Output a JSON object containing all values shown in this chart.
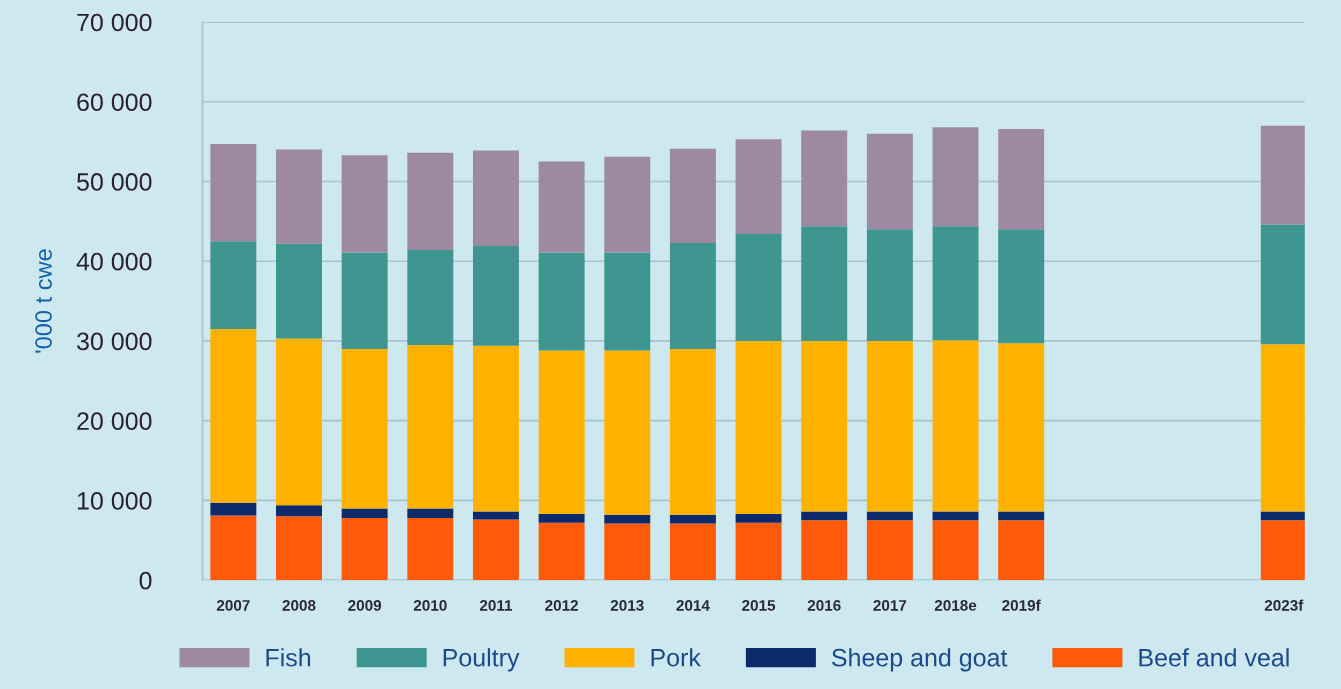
{
  "chart_data": {
    "type": "bar",
    "stacked": true,
    "ylabel": "'000 t cwe",
    "categories": [
      "2007",
      "2008",
      "2009",
      "2010",
      "2011",
      "2012",
      "2013",
      "2014",
      "2015",
      "2016",
      "2017",
      "2018e",
      "2019f",
      null,
      null,
      null,
      "2023f"
    ],
    "series": [
      {
        "name": "Beef and veal",
        "color": "#ff5a0a",
        "values": [
          8100,
          8000,
          7800,
          7800,
          7600,
          7200,
          7100,
          7100,
          7200,
          7500,
          7500,
          7500,
          7500,
          null,
          null,
          null,
          7500
        ]
      },
      {
        "name": "Sheep and goat",
        "color": "#0d2a6b",
        "values": [
          1600,
          1400,
          1200,
          1200,
          1000,
          1100,
          1100,
          1100,
          1100,
          1100,
          1100,
          1100,
          1100,
          null,
          null,
          null,
          1100
        ]
      },
      {
        "name": "Pork",
        "color": "#ffb300",
        "values": [
          21800,
          20900,
          20000,
          20500,
          20800,
          20500,
          20600,
          20800,
          21700,
          21400,
          21400,
          21500,
          21100,
          null,
          null,
          null,
          21000
        ]
      },
      {
        "name": "Poultry",
        "color": "#3f9590",
        "values": [
          11000,
          11900,
          12100,
          11900,
          12500,
          12300,
          12300,
          13300,
          13400,
          14400,
          14000,
          14300,
          14300,
          null,
          null,
          null,
          15000
        ]
      },
      {
        "name": "Fish",
        "color": "#9e8aa0",
        "values": [
          12200,
          11800,
          12200,
          12200,
          12000,
          11400,
          12000,
          11800,
          11900,
          12000,
          12000,
          12400,
          12600,
          null,
          null,
          null,
          12400
        ]
      }
    ],
    "ylim": [
      0,
      70000
    ],
    "yticks": [
      {
        "value": 0,
        "label": "0"
      },
      {
        "value": 10000,
        "label": "10 000"
      },
      {
        "value": 20000,
        "label": "20 000"
      },
      {
        "value": 30000,
        "label": "30 000"
      },
      {
        "value": 40000,
        "label": "40 000"
      },
      {
        "value": 50000,
        "label": "50 000"
      },
      {
        "value": 60000,
        "label": "60 000"
      },
      {
        "value": 70000,
        "label": "70 000"
      }
    ],
    "grid": "y",
    "legend": "bottom"
  }
}
